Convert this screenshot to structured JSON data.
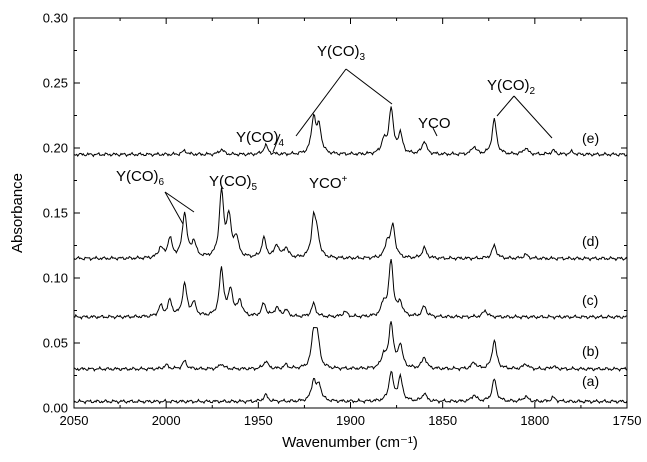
{
  "chart_data": {
    "type": "line",
    "xlabel": "Wavenumber (cm⁻¹)",
    "ylabel": "Absorbance",
    "xlim": [
      2050,
      1750
    ],
    "ylim": [
      0,
      0.3
    ],
    "x_ticks": [
      2050,
      2000,
      1950,
      1900,
      1850,
      1800,
      1750
    ],
    "y_ticks": [
      0.0,
      0.05,
      0.1,
      0.15,
      0.2,
      0.25,
      0.3
    ],
    "x_tick_labels": [
      "2050",
      "2000",
      "1950",
      "1900",
      "1850",
      "1800",
      "1750"
    ],
    "y_tick_labels": [
      "0.00",
      "0.05",
      "0.10",
      "0.15",
      "0.20",
      "0.25",
      "0.30"
    ],
    "grid": false,
    "series": [
      {
        "name": "(a)",
        "baseline": 0.005,
        "peaks": [
          [
            1946,
            0.005
          ],
          [
            1920,
            0.016
          ],
          [
            1917,
            0.012
          ],
          [
            1878,
            0.022
          ],
          [
            1873,
            0.018
          ],
          [
            1860,
            0.006
          ],
          [
            1833,
            0.005
          ],
          [
            1822,
            0.017
          ],
          [
            1805,
            0.004
          ],
          [
            1790,
            0.003
          ]
        ]
      },
      {
        "name": "(b)",
        "baseline": 0.03,
        "peaks": [
          [
            2000,
            0.003
          ],
          [
            1990,
            0.006
          ],
          [
            1970,
            0.004
          ],
          [
            1946,
            0.006
          ],
          [
            1935,
            0.003
          ],
          [
            1920,
            0.025
          ],
          [
            1918,
            0.023
          ],
          [
            1882,
            0.01
          ],
          [
            1878,
            0.035
          ],
          [
            1873,
            0.018
          ],
          [
            1860,
            0.009
          ],
          [
            1833,
            0.005
          ],
          [
            1822,
            0.022
          ],
          [
            1805,
            0.004
          ],
          [
            1790,
            0.002
          ]
        ]
      },
      {
        "name": "(c)",
        "baseline": 0.07,
        "peaks": [
          [
            2003,
            0.008
          ],
          [
            1998,
            0.012
          ],
          [
            1990,
            0.025
          ],
          [
            1985,
            0.01
          ],
          [
            1970,
            0.036
          ],
          [
            1965,
            0.02
          ],
          [
            1960,
            0.012
          ],
          [
            1947,
            0.01
          ],
          [
            1940,
            0.007
          ],
          [
            1935,
            0.005
          ],
          [
            1920,
            0.01
          ],
          [
            1903,
            0.004
          ],
          [
            1882,
            0.01
          ],
          [
            1878,
            0.043
          ],
          [
            1873,
            0.01
          ],
          [
            1860,
            0.008
          ],
          [
            1827,
            0.005
          ]
        ]
      },
      {
        "name": "(d)",
        "baseline": 0.115,
        "peaks": [
          [
            2003,
            0.008
          ],
          [
            1998,
            0.015
          ],
          [
            1990,
            0.035
          ],
          [
            1985,
            0.012
          ],
          [
            1970,
            0.05
          ],
          [
            1966,
            0.03
          ],
          [
            1962,
            0.015
          ],
          [
            1947,
            0.015
          ],
          [
            1940,
            0.01
          ],
          [
            1935,
            0.008
          ],
          [
            1920,
            0.03
          ],
          [
            1918,
            0.015
          ],
          [
            1880,
            0.012
          ],
          [
            1877,
            0.025
          ],
          [
            1860,
            0.008
          ],
          [
            1822,
            0.01
          ],
          [
            1805,
            0.003
          ]
        ]
      },
      {
        "name": "(e)",
        "baseline": 0.195,
        "peaks": [
          [
            1990,
            0.003
          ],
          [
            1970,
            0.004
          ],
          [
            1946,
            0.007
          ],
          [
            1920,
            0.028
          ],
          [
            1917,
            0.02
          ],
          [
            1882,
            0.01
          ],
          [
            1878,
            0.035
          ],
          [
            1873,
            0.015
          ],
          [
            1860,
            0.01
          ],
          [
            1833,
            0.006
          ],
          [
            1822,
            0.027
          ],
          [
            1805,
            0.005
          ],
          [
            1790,
            0.003
          ],
          [
            1780,
            0.002
          ]
        ]
      }
    ],
    "annotations": [
      {
        "species": "Y(CO)",
        "subscript": "4",
        "superscript": ""
      },
      {
        "species": "Y(CO)",
        "subscript": "3",
        "superscript": ""
      },
      {
        "species": "YCO",
        "subscript": "",
        "superscript": ""
      },
      {
        "species": "Y(CO)",
        "subscript": "2",
        "superscript": ""
      },
      {
        "species": "Y(CO)",
        "subscript": "6",
        "superscript": ""
      },
      {
        "species": "Y(CO)",
        "subscript": "5",
        "superscript": ""
      },
      {
        "species": "YCO",
        "subscript": "",
        "superscript": "+"
      }
    ]
  }
}
